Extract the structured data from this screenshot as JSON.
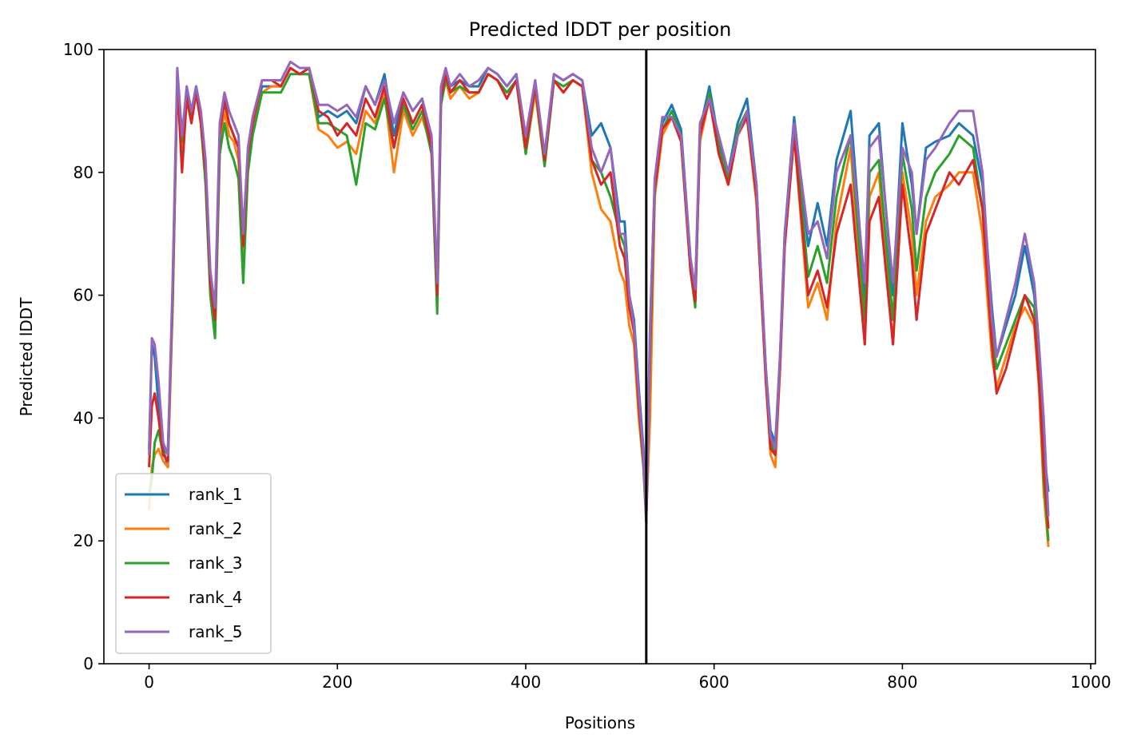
{
  "chart_data": {
    "type": "line",
    "title": "Predicted lDDT per position",
    "xlabel": "Positions",
    "ylabel": "Predicted lDDT",
    "xlim": [
      -48,
      1005
    ],
    "ylim": [
      0,
      100
    ],
    "xticks": [
      0,
      200,
      400,
      600,
      800,
      1000
    ],
    "yticks": [
      0,
      20,
      40,
      60,
      80,
      100
    ],
    "grid": false,
    "legend_position": "lower-left",
    "vline_x": 528,
    "series": [
      {
        "name": "rank_1",
        "color": "#1f77b4",
        "x": [
          0,
          3,
          6,
          10,
          15,
          20,
          25,
          30,
          35,
          40,
          45,
          50,
          55,
          60,
          65,
          70,
          75,
          80,
          85,
          90,
          95,
          100,
          105,
          110,
          120,
          130,
          140,
          150,
          160,
          170,
          180,
          190,
          200,
          210,
          220,
          230,
          240,
          250,
          260,
          270,
          280,
          290,
          300,
          306,
          310,
          315,
          320,
          330,
          340,
          350,
          360,
          370,
          380,
          390,
          400,
          410,
          420,
          430,
          440,
          450,
          460,
          470,
          480,
          490,
          500,
          505,
          510,
          515,
          520,
          525,
          528,
          532,
          537,
          545,
          555,
          565,
          575,
          580,
          585,
          595,
          605,
          615,
          625,
          635,
          645,
          655,
          660,
          665,
          670,
          675,
          685,
          700,
          710,
          720,
          730,
          745,
          760,
          765,
          775,
          790,
          800,
          810,
          815,
          825,
          835,
          850,
          860,
          875,
          885,
          895,
          900,
          910,
          920,
          930,
          940,
          945,
          950,
          955
        ],
        "values": [
          35,
          52,
          50,
          42,
          35,
          32,
          60,
          96,
          86,
          93,
          90,
          94,
          89,
          80,
          62,
          56,
          85,
          91,
          88,
          86,
          84,
          67,
          82,
          88,
          94,
          94,
          94,
          97,
          96,
          97,
          89,
          90,
          89,
          90,
          88,
          94,
          91,
          96,
          86,
          93,
          90,
          92,
          85,
          60,
          93,
          96,
          94,
          95,
          94,
          94,
          97,
          96,
          94,
          96,
          84,
          95,
          82,
          96,
          95,
          96,
          95,
          86,
          88,
          84,
          72,
          72,
          60,
          56,
          45,
          35,
          24,
          55,
          78,
          88,
          91,
          87,
          66,
          60,
          87,
          94,
          85,
          80,
          88,
          92,
          78,
          48,
          38,
          36,
          50,
          70,
          89,
          68,
          75,
          68,
          82,
          90,
          60,
          86,
          88,
          60,
          88,
          78,
          70,
          84,
          85,
          86,
          88,
          86,
          78,
          58,
          50,
          55,
          60,
          68,
          60,
          50,
          35,
          28
        ]
      },
      {
        "name": "rank_2",
        "color": "#ff7f0e",
        "x": [
          0,
          3,
          6,
          10,
          15,
          20,
          25,
          30,
          35,
          40,
          45,
          50,
          55,
          60,
          65,
          70,
          75,
          80,
          85,
          90,
          95,
          100,
          105,
          110,
          120,
          130,
          140,
          150,
          160,
          170,
          180,
          190,
          200,
          210,
          220,
          230,
          240,
          250,
          260,
          270,
          280,
          290,
          300,
          306,
          310,
          315,
          320,
          330,
          340,
          350,
          360,
          370,
          380,
          390,
          400,
          410,
          420,
          430,
          440,
          450,
          460,
          470,
          480,
          490,
          500,
          505,
          510,
          515,
          520,
          525,
          528,
          532,
          537,
          545,
          555,
          565,
          575,
          580,
          585,
          595,
          605,
          615,
          625,
          635,
          645,
          655,
          660,
          665,
          670,
          675,
          685,
          700,
          710,
          720,
          730,
          745,
          760,
          765,
          775,
          790,
          800,
          810,
          815,
          825,
          835,
          850,
          860,
          875,
          885,
          895,
          900,
          910,
          920,
          930,
          940,
          945,
          950,
          955
        ],
        "values": [
          25,
          32,
          34,
          35,
          33,
          32,
          58,
          95,
          84,
          92,
          89,
          93,
          88,
          79,
          61,
          55,
          84,
          90,
          86,
          85,
          82,
          66,
          81,
          87,
          93,
          94,
          94,
          97,
          96,
          96,
          87,
          86,
          84,
          85,
          83,
          90,
          88,
          93,
          80,
          90,
          86,
          89,
          84,
          59,
          92,
          95,
          92,
          94,
          92,
          93,
          96,
          95,
          92,
          95,
          83,
          93,
          81,
          95,
          93,
          95,
          94,
          80,
          74,
          72,
          64,
          62,
          55,
          52,
          40,
          32,
          24,
          40,
          76,
          86,
          89,
          85,
          64,
          59,
          85,
          92,
          83,
          78,
          86,
          89,
          75,
          46,
          34,
          32,
          48,
          68,
          86,
          58,
          62,
          56,
          72,
          84,
          52,
          76,
          80,
          52,
          80,
          70,
          60,
          72,
          76,
          78,
          80,
          80,
          70,
          50,
          45,
          50,
          55,
          58,
          55,
          45,
          28,
          19
        ]
      },
      {
        "name": "rank_3",
        "color": "#2ca02c",
        "x": [
          0,
          3,
          6,
          10,
          15,
          20,
          25,
          30,
          35,
          40,
          45,
          50,
          55,
          60,
          65,
          70,
          75,
          80,
          85,
          90,
          95,
          100,
          105,
          110,
          120,
          130,
          140,
          150,
          160,
          170,
          180,
          190,
          200,
          210,
          220,
          230,
          240,
          250,
          260,
          270,
          280,
          290,
          300,
          306,
          310,
          315,
          320,
          330,
          340,
          350,
          360,
          370,
          380,
          390,
          400,
          410,
          420,
          430,
          440,
          450,
          460,
          470,
          480,
          490,
          500,
          505,
          510,
          515,
          520,
          525,
          528,
          532,
          537,
          545,
          555,
          565,
          575,
          580,
          585,
          595,
          605,
          615,
          625,
          635,
          645,
          655,
          660,
          665,
          670,
          675,
          685,
          700,
          710,
          720,
          730,
          745,
          760,
          765,
          775,
          790,
          800,
          810,
          815,
          825,
          835,
          850,
          860,
          875,
          885,
          895,
          900,
          910,
          920,
          930,
          940,
          945,
          950,
          955
        ],
        "values": [
          28,
          30,
          36,
          38,
          34,
          35,
          58,
          95,
          85,
          92,
          89,
          93,
          88,
          78,
          60,
          53,
          83,
          88,
          84,
          82,
          79,
          62,
          80,
          86,
          93,
          93,
          93,
          96,
          96,
          96,
          88,
          88,
          87,
          86,
          78,
          88,
          87,
          92,
          84,
          91,
          87,
          90,
          83,
          57,
          91,
          95,
          93,
          94,
          93,
          93,
          96,
          95,
          93,
          95,
          83,
          94,
          81,
          95,
          94,
          95,
          94,
          82,
          80,
          76,
          70,
          68,
          58,
          55,
          42,
          32,
          23,
          50,
          77,
          87,
          90,
          86,
          64,
          58,
          86,
          93,
          84,
          79,
          87,
          90,
          77,
          47,
          36,
          34,
          49,
          69,
          88,
          63,
          68,
          62,
          76,
          86,
          56,
          80,
          82,
          56,
          83,
          74,
          64,
          76,
          80,
          83,
          86,
          84,
          74,
          54,
          48,
          52,
          56,
          60,
          58,
          48,
          30,
          20
        ]
      },
      {
        "name": "rank_4",
        "color": "#d62728",
        "x": [
          0,
          3,
          6,
          10,
          15,
          20,
          25,
          30,
          35,
          40,
          45,
          50,
          55,
          60,
          65,
          70,
          75,
          80,
          85,
          90,
          95,
          100,
          105,
          110,
          120,
          130,
          140,
          150,
          160,
          170,
          180,
          190,
          200,
          210,
          220,
          230,
          240,
          250,
          260,
          270,
          280,
          290,
          300,
          306,
          310,
          315,
          320,
          330,
          340,
          350,
          360,
          370,
          380,
          390,
          400,
          410,
          420,
          430,
          440,
          450,
          460,
          470,
          480,
          490,
          500,
          505,
          510,
          515,
          520,
          525,
          528,
          532,
          537,
          545,
          555,
          565,
          575,
          580,
          585,
          595,
          605,
          615,
          625,
          635,
          645,
          655,
          660,
          665,
          670,
          675,
          685,
          700,
          710,
          720,
          730,
          745,
          760,
          765,
          775,
          790,
          800,
          810,
          815,
          825,
          835,
          850,
          860,
          875,
          885,
          895,
          900,
          910,
          920,
          930,
          940,
          945,
          950,
          955
        ],
        "values": [
          32,
          42,
          44,
          40,
          34,
          33,
          60,
          95,
          80,
          92,
          88,
          93,
          88,
          80,
          62,
          56,
          86,
          92,
          88,
          86,
          84,
          68,
          83,
          88,
          95,
          95,
          94,
          97,
          96,
          97,
          90,
          89,
          86,
          88,
          86,
          92,
          89,
          94,
          84,
          92,
          88,
          91,
          84,
          60,
          92,
          96,
          93,
          95,
          93,
          93,
          96,
          95,
          92,
          95,
          84,
          94,
          82,
          95,
          93,
          95,
          94,
          82,
          78,
          80,
          68,
          66,
          58,
          54,
          42,
          33,
          24,
          52,
          77,
          87,
          89,
          85,
          64,
          59,
          86,
          92,
          83,
          78,
          86,
          89,
          76,
          46,
          35,
          34,
          48,
          68,
          86,
          60,
          64,
          58,
          70,
          78,
          52,
          72,
          76,
          52,
          78,
          66,
          56,
          70,
          74,
          80,
          78,
          82,
          74,
          52,
          44,
          48,
          54,
          60,
          56,
          46,
          32,
          22
        ]
      },
      {
        "name": "rank_5",
        "color": "#9467bd",
        "x": [
          0,
          3,
          6,
          10,
          15,
          20,
          25,
          30,
          35,
          40,
          45,
          50,
          55,
          60,
          65,
          70,
          75,
          80,
          85,
          90,
          95,
          100,
          105,
          110,
          120,
          130,
          140,
          150,
          160,
          170,
          180,
          190,
          200,
          210,
          220,
          230,
          240,
          250,
          260,
          270,
          280,
          290,
          300,
          306,
          310,
          315,
          320,
          330,
          340,
          350,
          360,
          370,
          380,
          390,
          400,
          410,
          420,
          430,
          440,
          450,
          460,
          470,
          480,
          490,
          500,
          505,
          510,
          515,
          520,
          525,
          528,
          532,
          537,
          545,
          555,
          565,
          575,
          580,
          585,
          595,
          605,
          615,
          625,
          635,
          645,
          655,
          660,
          665,
          670,
          675,
          685,
          700,
          710,
          720,
          730,
          745,
          760,
          765,
          775,
          790,
          800,
          810,
          815,
          825,
          835,
          850,
          860,
          875,
          885,
          895,
          900,
          910,
          920,
          930,
          940,
          945,
          950,
          955
        ],
        "values": [
          34,
          53,
          52,
          46,
          36,
          34,
          62,
          97,
          86,
          94,
          90,
          94,
          90,
          82,
          64,
          58,
          88,
          93,
          90,
          88,
          86,
          70,
          84,
          89,
          95,
          95,
          95,
          98,
          97,
          97,
          91,
          91,
          90,
          91,
          89,
          94,
          91,
          95,
          88,
          93,
          90,
          92,
          86,
          62,
          94,
          97,
          94,
          96,
          94,
          95,
          97,
          96,
          94,
          96,
          86,
          95,
          83,
          96,
          95,
          96,
          95,
          84,
          80,
          84,
          70,
          70,
          60,
          55,
          44,
          34,
          23,
          54,
          79,
          89,
          89,
          86,
          66,
          61,
          88,
          92,
          86,
          80,
          86,
          90,
          78,
          48,
          37,
          35,
          50,
          70,
          88,
          70,
          72,
          66,
          80,
          86,
          62,
          84,
          86,
          62,
          84,
          80,
          70,
          82,
          84,
          88,
          90,
          90,
          80,
          56,
          50,
          56,
          62,
          70,
          62,
          52,
          40,
          24
        ]
      }
    ]
  }
}
